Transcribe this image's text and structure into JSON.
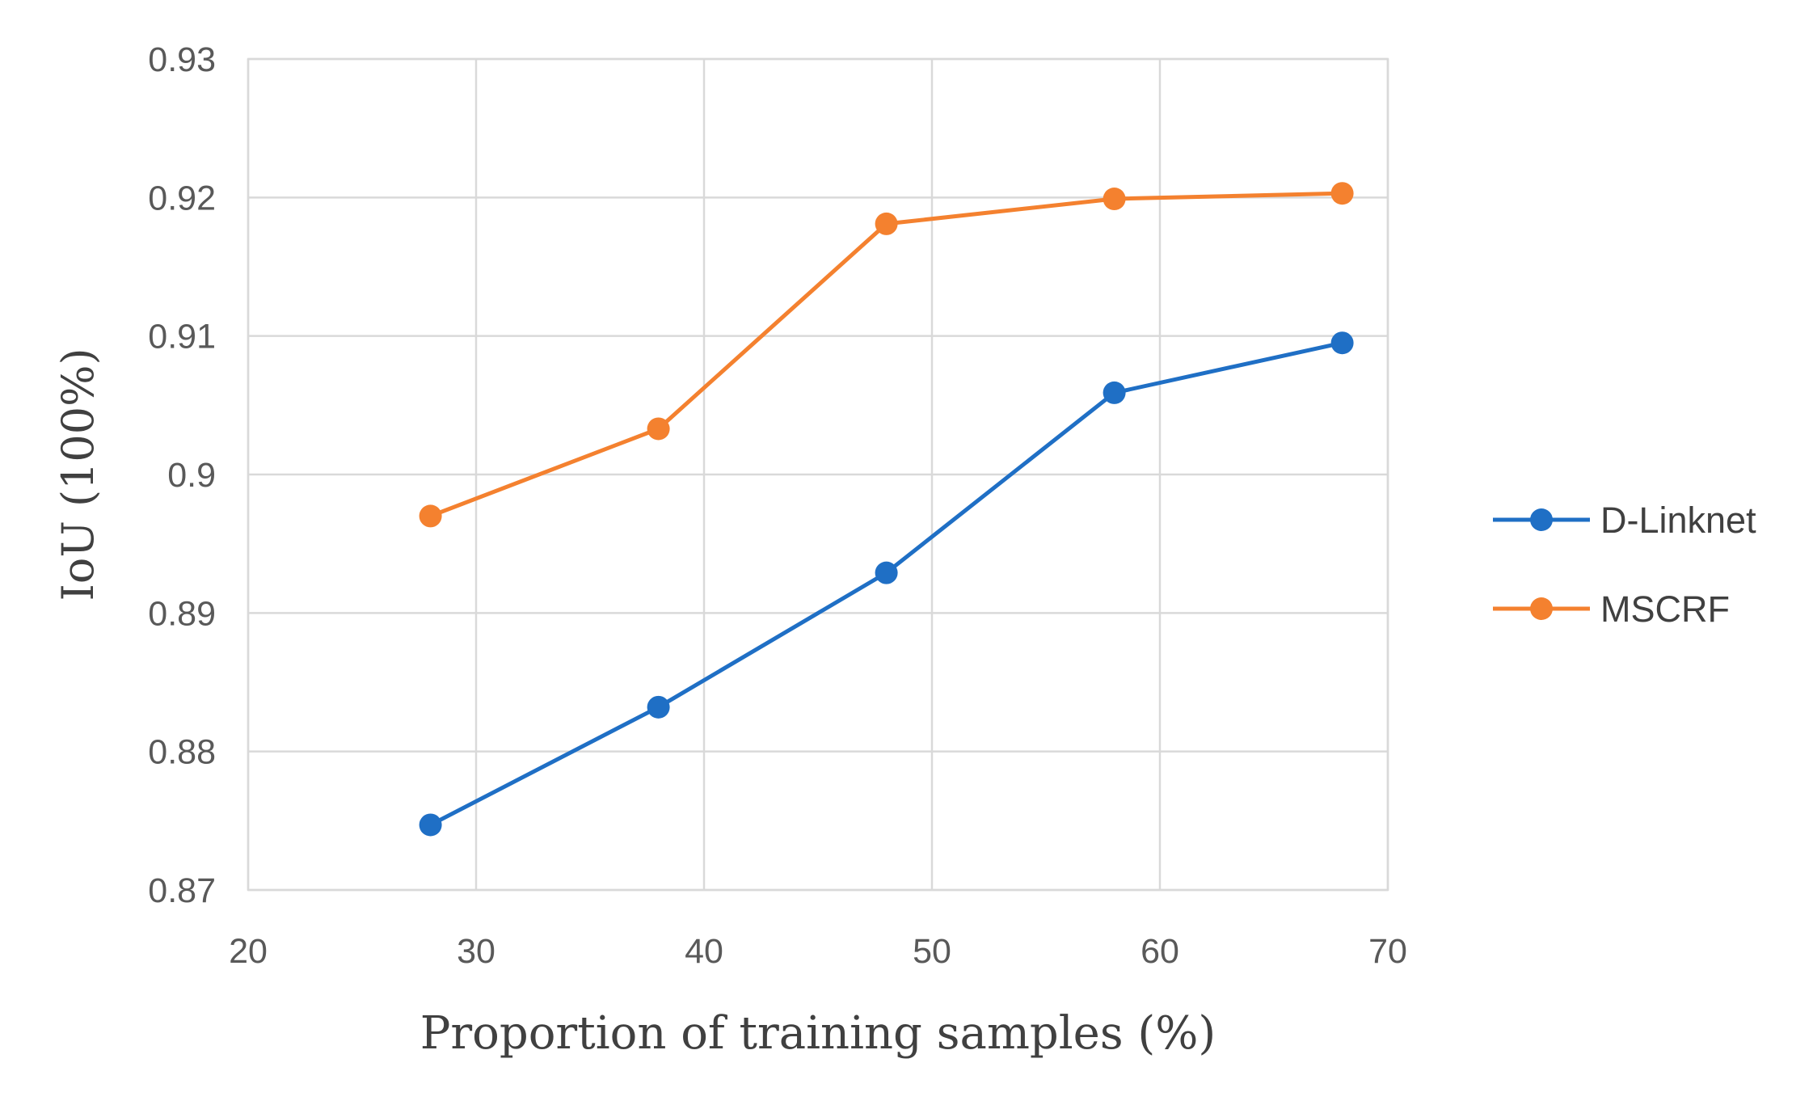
{
  "chart_data": {
    "type": "line",
    "title": "",
    "xlabel": "Proportion of training samples (%)",
    "ylabel": "IoU (100%)",
    "xlim": [
      20,
      70
    ],
    "ylim": [
      0.87,
      0.93
    ],
    "xticks": [
      20,
      30,
      40,
      50,
      60,
      70
    ],
    "xtick_labels": [
      "20",
      "30",
      "40",
      "50",
      "60",
      "70"
    ],
    "yticks": [
      0.87,
      0.88,
      0.89,
      0.9,
      0.91,
      0.92,
      0.93
    ],
    "ytick_labels": [
      "0.87",
      "0.88",
      "0.89",
      "0.9",
      "0.91",
      "0.92",
      "0.93"
    ],
    "grid": true,
    "legend_position": "right",
    "x": [
      28,
      38,
      48,
      58,
      68
    ],
    "series": [
      {
        "name": "D-Linknet",
        "color": "#1f6fc5",
        "values": [
          0.8747,
          0.8832,
          0.8929,
          0.9059,
          0.9095
        ]
      },
      {
        "name": "MSCRF",
        "color": "#f4812f",
        "values": [
          0.897,
          0.9033,
          0.9181,
          0.9199,
          0.9203
        ]
      }
    ]
  }
}
